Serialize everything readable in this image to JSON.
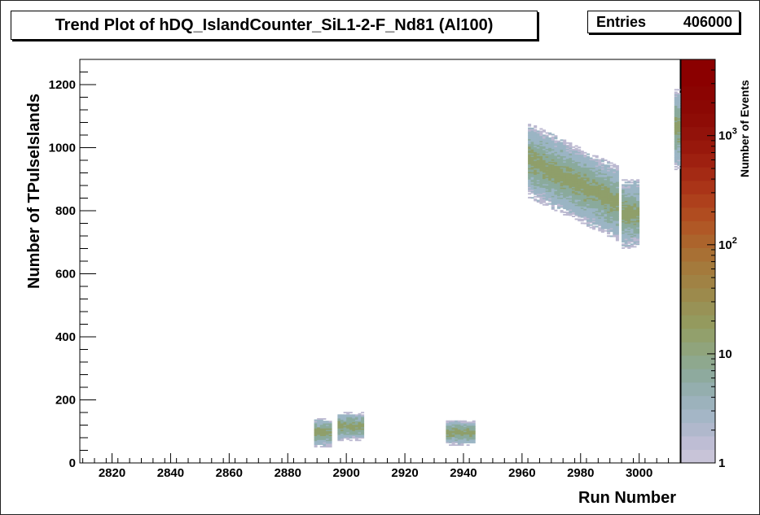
{
  "chart_data": {
    "type": "heatmap",
    "title": "Trend Plot of hDQ_IslandCounter_SiL1-2-F_Nd81 (Al100)",
    "xlabel": "Run Number",
    "ylabel": "Number of TPulseIslands",
    "zlabel": "Number of Events",
    "xlim": [
      2809,
      3014
    ],
    "ylim": [
      0,
      1280
    ],
    "zscale": "log",
    "zlim": [
      1,
      5000
    ],
    "x_ticks": [
      "2820",
      "2840",
      "2860",
      "2880",
      "2900",
      "2920",
      "2940",
      "2960",
      "2980",
      "3000"
    ],
    "y_ticks": [
      "0",
      "200",
      "400",
      "600",
      "800",
      "1000",
      "1200"
    ],
    "z_ticks": [
      "1",
      "10",
      "10^2",
      "10^3"
    ],
    "grid": false,
    "stats": {
      "entries_label": "Entries",
      "entries_value": "406000"
    },
    "clusters": [
      {
        "x_range": [
          2889,
          2895
        ],
        "y_center": 95,
        "y_spread": 45
      },
      {
        "x_range": [
          2897,
          2906
        ],
        "y_center": 115,
        "y_spread": 45
      },
      {
        "x_range": [
          2934,
          2944
        ],
        "y_center": 95,
        "y_spread": 40
      },
      {
        "x_range": [
          2962,
          2993
        ],
        "y_center_start": 960,
        "y_center_end": 820,
        "y_spread": 120
      },
      {
        "x_range": [
          2994,
          3000
        ],
        "y_center": 790,
        "y_spread": 110
      },
      {
        "x_range": [
          3012,
          3014
        ],
        "y_center": 1060,
        "y_spread": 130
      }
    ]
  },
  "colors": {
    "palette": [
      "#bcb9d1",
      "#9bb5c4",
      "#8aaa9c",
      "#8f9f6a",
      "#9d8d45",
      "#b06a25",
      "#a33515",
      "#8b0000"
    ]
  }
}
